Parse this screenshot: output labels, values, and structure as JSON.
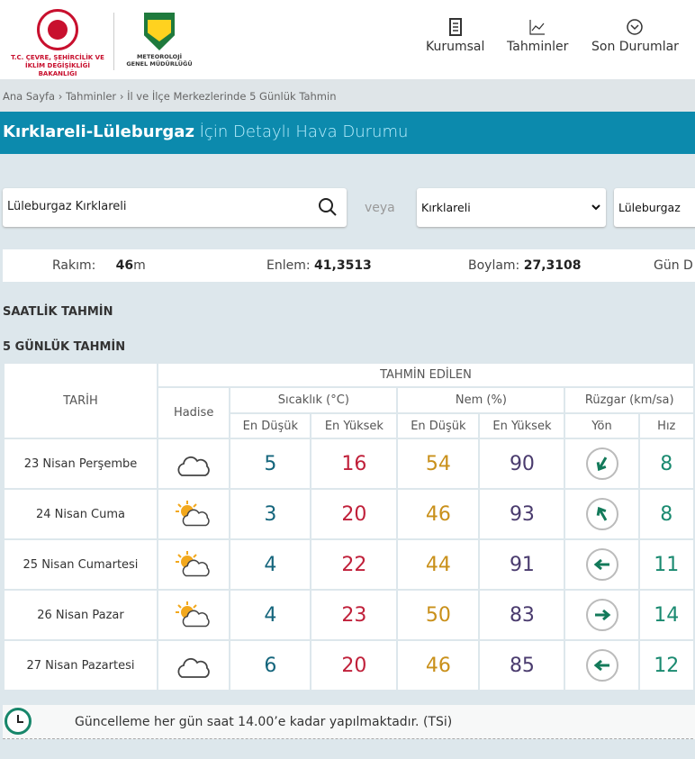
{
  "header": {
    "ministry": "T.C. ÇEVRE, ŞEHİRCİLİK VE İKLİM DEĞİŞİKLİĞİ BAKANLIĞI",
    "ministry_l1": "T.C. ÇEVRE, ŞEHİRCİLİK VE",
    "ministry_l2": "İKLİM DEĞİŞİKLİĞİ BAKANLIĞI",
    "mgm_l1": "METEOROLOJİ",
    "mgm_l2": "GENEL MÜDÜRLÜĞÜ",
    "nav": [
      {
        "label": "Kurumsal",
        "icon": "document-icon"
      },
      {
        "label": "Tahminler",
        "icon": "chart-icon"
      },
      {
        "label": "Son Durumlar",
        "icon": "chevron-circle-icon"
      }
    ]
  },
  "breadcrumb": "Ana Sayfa › Tahminler › İl ve İlçe Merkezlerinde 5 Günlük Tahmin",
  "title": {
    "place": "Kırklareli-Lüleburgaz",
    "rest": " İçin Detaylı Hava Durumu"
  },
  "search": {
    "value": "Lüleburgaz Kırklareli",
    "or": "veya",
    "province": "Kırklareli",
    "district": "Lüleburgaz"
  },
  "info": {
    "rakim_label": "Rakım:",
    "rakim": "46",
    "rakim_unit": "m",
    "enlem_label": "Enlem:",
    "enlem": "41,3513",
    "boylam_label": "Boylam:",
    "boylam": "27,3108",
    "gun": "Gün D"
  },
  "sections": {
    "hourly": "SAATLİK TAHMİN",
    "daily": "5 GÜNLÜK TAHMİN"
  },
  "table": {
    "tarih": "TARİH",
    "tahmin": "TAHMİN EDİLEN",
    "hadise": "Hadise",
    "sicaklik": "Sıcaklık (°C)",
    "nem": "Nem (%)",
    "ruzgar": "Rüzgar (km/sa)",
    "min": "En Düşük",
    "max": "En Yüksek",
    "yon": "Yön",
    "hiz": "Hız",
    "rows": [
      {
        "date": "23 Nisan Perşembe",
        "icon": "cloudy",
        "tmin": "5",
        "tmax": "16",
        "hmin": "54",
        "hmax": "90",
        "dir": 210,
        "speed": "8"
      },
      {
        "date": "24 Nisan Cuma",
        "icon": "partly-cloudy",
        "tmin": "3",
        "tmax": "20",
        "hmin": "46",
        "hmax": "93",
        "dir": 330,
        "speed": "8"
      },
      {
        "date": "25 Nisan Cumartesi",
        "icon": "partly-cloudy",
        "tmin": "4",
        "tmax": "22",
        "hmin": "44",
        "hmax": "91",
        "dir": 270,
        "speed": "11"
      },
      {
        "date": "26 Nisan Pazar",
        "icon": "partly-cloudy",
        "tmin": "4",
        "tmax": "23",
        "hmin": "50",
        "hmax": "83",
        "dir": 90,
        "speed": "14"
      },
      {
        "date": "27 Nisan Pazartesi",
        "icon": "cloudy",
        "tmin": "6",
        "tmax": "20",
        "hmin": "46",
        "hmax": "85",
        "dir": 270,
        "speed": "12"
      }
    ]
  },
  "footer": "Güncelleme her gün saat 14.00’e kadar yapılmaktadır. (TSi)",
  "colors": {
    "titlebar": "#0c8aad",
    "min_temp": "#14657c",
    "max_temp": "#c0203a",
    "min_hum": "#c9901a",
    "max_hum": "#4a3b6e",
    "wind": "#1a8a70"
  }
}
